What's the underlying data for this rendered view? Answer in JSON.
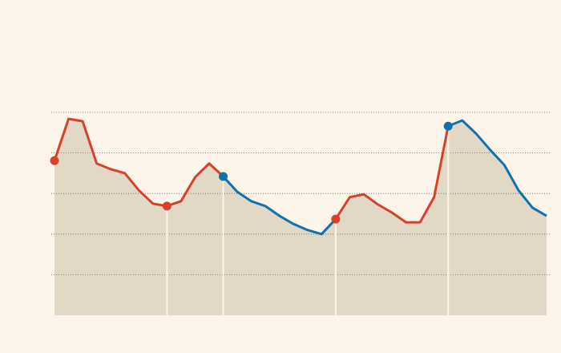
{
  "chart_data": {
    "type": "line",
    "categories": [
      null,
      null,
      null,
      null,
      null,
      null,
      null,
      null,
      null,
      null,
      null,
      null,
      null,
      null,
      null,
      null,
      null,
      null,
      null,
      null,
      null,
      null,
      null,
      null,
      null,
      null,
      null,
      null,
      null,
      null,
      null,
      null,
      null,
      null,
      null,
      null
    ],
    "series": [
      {
        "color": "#d7412a",
        "values": [
          3.81,
          4.84,
          4.78,
          3.74,
          3.6,
          3.5,
          3.08,
          2.75,
          2.69,
          null,
          null,
          null,
          null,
          null,
          null,
          null,
          null,
          null,
          null,
          null,
          null,
          null,
          null,
          null,
          null,
          null,
          null,
          null,
          null,
          null,
          null,
          null,
          null,
          null,
          null,
          null
        ]
      },
      {
        "color": "#d7412a",
        "values": [
          null,
          null,
          null,
          null,
          null,
          null,
          null,
          null,
          2.69,
          2.81,
          3.4,
          3.74,
          3.42,
          null,
          null,
          null,
          null,
          null,
          null,
          null,
          null,
          null,
          null,
          null,
          null,
          null,
          null,
          null,
          null,
          null,
          null,
          null,
          null,
          null,
          null,
          null
        ]
      },
      {
        "color": "#0f72ac",
        "values": [
          null,
          null,
          null,
          null,
          null,
          null,
          null,
          null,
          null,
          null,
          null,
          null,
          3.42,
          3.04,
          2.81,
          2.69,
          2.45,
          2.25,
          2.1,
          2.0,
          2.37,
          null,
          null,
          null,
          null,
          null,
          null,
          null,
          null,
          null,
          null,
          null,
          null,
          null,
          null,
          null
        ]
      },
      {
        "color": "#d7412a",
        "values": [
          null,
          null,
          null,
          null,
          null,
          null,
          null,
          null,
          null,
          null,
          null,
          null,
          null,
          null,
          null,
          null,
          null,
          null,
          null,
          null,
          2.37,
          2.91,
          2.98,
          2.73,
          2.53,
          2.29,
          2.29,
          2.91,
          4.66,
          null,
          null,
          null,
          null,
          null,
          null,
          null
        ]
      },
      {
        "color": "#0f72ac",
        "values": [
          null,
          null,
          null,
          null,
          null,
          null,
          null,
          null,
          null,
          null,
          null,
          null,
          null,
          null,
          null,
          null,
          null,
          null,
          null,
          null,
          null,
          null,
          null,
          null,
          null,
          null,
          null,
          null,
          4.66,
          4.8,
          4.47,
          4.07,
          3.7,
          3.08,
          2.65,
          2.45
        ]
      }
    ],
    "area_color": "#e1d8c6",
    "ylim": [
      0,
      5
    ],
    "yticks": [
      1,
      2,
      3,
      4,
      5
    ],
    "grid": true
  }
}
